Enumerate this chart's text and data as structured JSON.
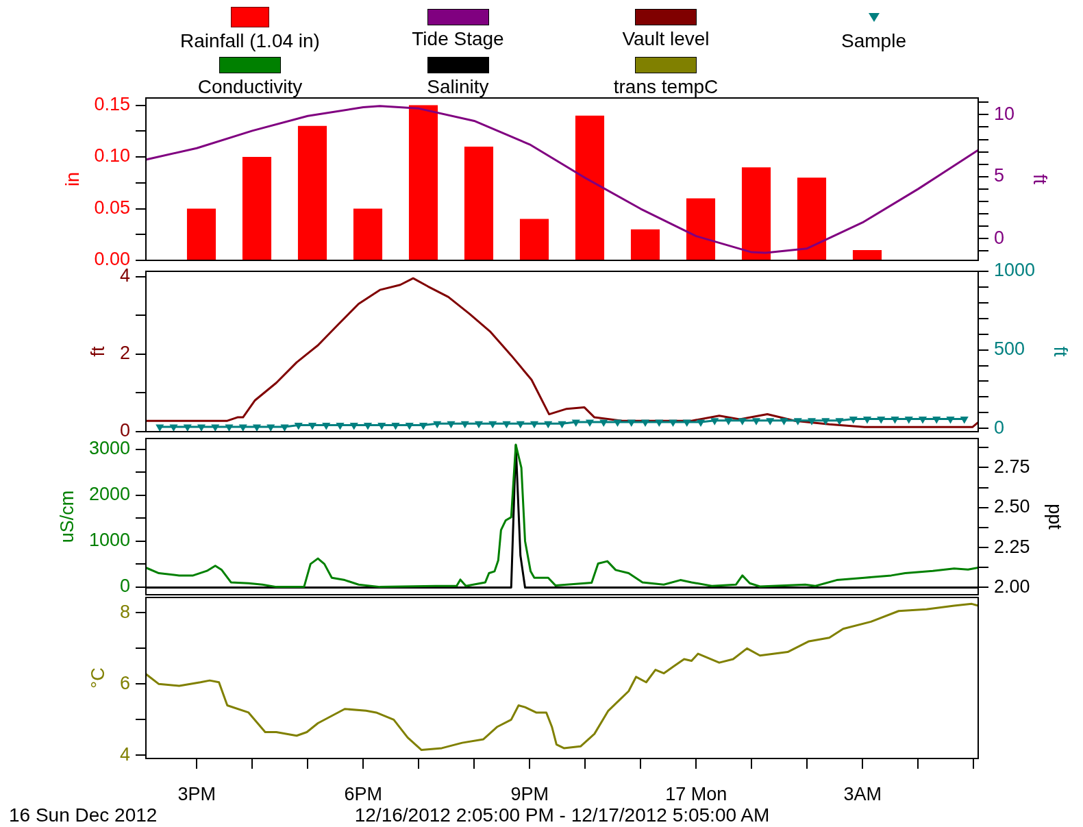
{
  "chart_data": [
    {
      "type": "bar",
      "xlim": [
        "2012-12-16T14:05",
        "2012-12-17T05:05"
      ],
      "ylim": [
        0,
        0.157
      ],
      "yticks": [
        {
          "value": 0,
          "label": "0.00"
        },
        {
          "value": 0.025,
          "label": null
        },
        {
          "value": 0.05,
          "label": "0.05"
        },
        {
          "value": 0.075,
          "label": null
        },
        {
          "value": 0.1,
          "label": "0.10"
        },
        {
          "value": 0.125,
          "label": null
        },
        {
          "value": 0.15,
          "label": "0.15"
        }
      ],
      "y2lim": [
        -1.76,
        11.35
      ],
      "y2ticks": [
        {
          "value": -1,
          "label": null
        },
        0,
        {
          "value": 1,
          "label": null
        },
        {
          "value": 2,
          "label": null
        },
        {
          "value": 3,
          "label": null
        },
        {
          "value": 4,
          "label": null
        },
        5,
        {
          "value": 6,
          "label": null
        },
        {
          "value": 7,
          "label": null
        },
        {
          "value": 8,
          "label": null
        },
        {
          "value": 9,
          "label": null
        },
        10,
        {
          "value": 11,
          "label": null
        }
      ],
      "ylabel": "in",
      "y2label": "ft",
      "tick_labels": "y",
      "legend": "top",
      "series": [
        {
          "name": "Rainfall (1.04 in)",
          "color": "#ff0000",
          "x": [
            "2012-12-16T15:05",
            "2012-12-16T16:05",
            "2012-12-16T17:05",
            "2012-12-16T18:05",
            "2012-12-16T19:05",
            "2012-12-16T20:05",
            "2012-12-16T21:05",
            "2012-12-16T22:05",
            "2012-12-16T23:05",
            "2012-12-17T00:05",
            "2012-12-17T01:05",
            "2012-12-17T02:05",
            "2012-12-17T03:05"
          ],
          "values": [
            0.05,
            0.1,
            0.13,
            0.05,
            0.15,
            0.11,
            0.04,
            0.14,
            0.03,
            0.06,
            0.09,
            0.08,
            0.01
          ]
        },
        {
          "name": "Tide Stage",
          "type": "line",
          "color": "#800080",
          "axis": "y2",
          "x": [
            "2012-12-16T14:05",
            "2012-12-16T15:00",
            "2012-12-16T16:00",
            "2012-12-16T17:00",
            "2012-12-16T18:00",
            "2012-12-16T18:18",
            "2012-12-16T19:00",
            "2012-12-16T20:00",
            "2012-12-16T21:00",
            "2012-12-16T22:00",
            "2012-12-16T23:00",
            "2012-12-17T00:00",
            "2012-12-17T01:00",
            "2012-12-17T01:15",
            "2012-12-17T02:00",
            "2012-12-17T03:00",
            "2012-12-17T04:00",
            "2012-12-17T05:05"
          ],
          "values": [
            6.37,
            7.3,
            8.7,
            9.9,
            10.6,
            10.7,
            10.5,
            9.5,
            7.6,
            4.9,
            2.4,
            0.2,
            -1.1,
            -1.15,
            -0.8,
            1.3,
            4.0,
            7.14
          ]
        }
      ]
    },
    {
      "type": "line",
      "xlim": [
        "2012-12-16T14:05",
        "2012-12-17T05:05"
      ],
      "ylim": [
        0,
        4.14
      ],
      "yticks": [
        0,
        {
          "value": 1,
          "label": null
        },
        2,
        {
          "value": 3,
          "label": null
        },
        4
      ],
      "y2lim": [
        -21,
        1000
      ],
      "y2ticks": [
        0,
        {
          "value": 100,
          "label": null
        },
        {
          "value": 200,
          "label": null
        },
        {
          "value": 300,
          "label": null
        },
        {
          "value": 400,
          "label": null
        },
        500,
        {
          "value": 600,
          "label": null
        },
        {
          "value": 700,
          "label": null
        },
        {
          "value": 800,
          "label": null
        },
        {
          "value": 900,
          "label": null
        },
        1000
      ],
      "ylabel": "ft",
      "y2label": "ft",
      "tick_labels": "y",
      "legend": "top",
      "series": [
        {
          "name": "Vault level",
          "color": "#800000",
          "x": [
            "2012-12-16T14:05",
            "2012-12-16T15:33",
            "2012-12-16T15:44",
            "2012-12-16T15:50",
            "2012-12-16T16:03",
            "2012-12-16T16:26",
            "2012-12-16T16:48",
            "2012-12-16T17:11",
            "2012-12-16T17:33",
            "2012-12-16T17:55",
            "2012-12-16T18:18",
            "2012-12-16T18:40",
            "2012-12-16T18:54",
            "2012-12-16T19:10",
            "2012-12-16T19:32",
            "2012-12-16T19:55",
            "2012-12-16T20:17",
            "2012-12-16T20:40",
            "2012-12-16T21:02",
            "2012-12-16T21:21",
            "2012-12-16T21:40",
            "2012-12-16T21:59",
            "2012-12-16T22:10",
            "2012-12-16T22:40",
            "2012-12-16T23:17",
            "2012-12-16T23:55",
            "2012-12-17T00:25",
            "2012-12-17T00:47",
            "2012-12-17T01:17",
            "2012-12-17T01:47",
            "2012-12-17T02:24",
            "2012-12-17T03:02",
            "2012-12-17T03:39",
            "2012-12-17T04:59",
            "2012-12-17T05:05"
          ],
          "values": [
            0.28,
            0.28,
            0.37,
            0.37,
            0.81,
            1.26,
            1.79,
            2.23,
            2.77,
            3.3,
            3.66,
            3.79,
            3.96,
            3.75,
            3.48,
            3.04,
            2.59,
            1.97,
            1.34,
            0.45,
            0.59,
            0.63,
            0.37,
            0.28,
            0.28,
            0.28,
            0.41,
            0.32,
            0.45,
            0.28,
            0.19,
            0.12,
            0.12,
            0.12,
            0.24
          ]
        },
        {
          "name": "Sample",
          "color": "#008080",
          "axis": "y2",
          "marker": "triangle",
          "x": [
            "2012-12-16T14:20",
            "2012-12-16T14:35",
            "2012-12-16T14:50",
            "2012-12-16T15:05",
            "2012-12-16T15:20",
            "2012-12-16T15:35",
            "2012-12-16T15:50",
            "2012-12-16T16:05",
            "2012-12-16T16:20",
            "2012-12-16T16:35",
            "2012-12-16T16:50",
            "2012-12-16T17:05",
            "2012-12-16T17:20",
            "2012-12-16T17:35",
            "2012-12-16T17:50",
            "2012-12-16T18:05",
            "2012-12-16T18:20",
            "2012-12-16T18:35",
            "2012-12-16T18:50",
            "2012-12-16T19:05",
            "2012-12-16T19:20",
            "2012-12-16T19:35",
            "2012-12-16T19:50",
            "2012-12-16T20:05",
            "2012-12-16T20:20",
            "2012-12-16T20:35",
            "2012-12-16T20:50",
            "2012-12-16T21:05",
            "2012-12-16T21:20",
            "2012-12-16T21:35",
            "2012-12-16T21:50",
            "2012-12-16T22:05",
            "2012-12-16T22:20",
            "2012-12-16T22:35",
            "2012-12-16T22:50",
            "2012-12-16T23:05",
            "2012-12-16T23:20",
            "2012-12-16T23:35",
            "2012-12-16T23:50",
            "2012-12-17T00:05",
            "2012-12-17T00:20",
            "2012-12-17T00:35",
            "2012-12-17T00:50",
            "2012-12-17T01:05",
            "2012-12-17T01:20",
            "2012-12-17T01:35",
            "2012-12-17T01:50",
            "2012-12-17T02:05",
            "2012-12-17T02:20",
            "2012-12-17T02:35",
            "2012-12-17T02:50",
            "2012-12-17T03:05",
            "2012-12-17T03:20",
            "2012-12-17T03:35",
            "2012-12-17T03:50",
            "2012-12-17T04:05",
            "2012-12-17T04:20",
            "2012-12-17T04:35",
            "2012-12-17T04:50"
          ],
          "values": [
            10,
            10,
            10,
            10,
            10,
            10,
            10,
            10,
            10,
            10,
            20,
            20,
            20,
            20,
            20,
            20,
            20,
            20,
            20,
            20,
            30,
            30,
            30,
            30,
            30,
            30,
            30,
            30,
            30,
            30,
            40,
            40,
            40,
            40,
            40,
            40,
            40,
            40,
            40,
            40,
            50,
            50,
            50,
            50,
            50,
            50,
            50,
            50,
            50,
            50,
            60,
            60,
            60,
            60,
            60,
            60,
            60,
            60,
            60
          ]
        }
      ]
    },
    {
      "type": "line",
      "xlim": [
        "2012-12-16T14:05",
        "2012-12-17T05:05"
      ],
      "ylim": [
        -170,
        3236
      ],
      "yticks": [
        0,
        {
          "value": 500,
          "label": null
        },
        1000,
        {
          "value": 1500,
          "label": null
        },
        2000,
        {
          "value": 2500,
          "label": null
        },
        3000
      ],
      "y2lim": [
        1.955,
        2.932
      ],
      "y2ticks": [
        {
          "value": 2,
          "label": "2.00"
        },
        {
          "value": 2.125,
          "label": null
        },
        2.25,
        {
          "value": 2.375,
          "label": null
        },
        {
          "value": 2.5,
          "label": "2.50"
        },
        {
          "value": 2.625,
          "label": null
        },
        2.75,
        {
          "value": 2.875,
          "label": null
        }
      ],
      "ylabel": "uS/cm",
      "y2label": "ppt",
      "tick_labels": "y",
      "legend": "top",
      "series": [
        {
          "name": "Conductivity",
          "color": "#008000",
          "x": [
            "2012-12-16T14:05",
            "2012-12-16T14:19",
            "2012-12-16T14:41",
            "2012-12-16T14:56",
            "2012-12-16T15:11",
            "2012-12-16T15:20",
            "2012-12-16T15:27",
            "2012-12-16T15:37",
            "2012-12-16T15:56",
            "2012-12-16T16:11",
            "2012-12-16T16:26",
            "2012-12-16T16:56",
            "2012-12-16T17:03",
            "2012-12-16T17:11",
            "2012-12-16T17:18",
            "2012-12-16T17:26",
            "2012-12-16T17:40",
            "2012-12-16T17:55",
            "2012-12-16T18:18",
            "2012-12-16T19:18",
            "2012-12-16T19:41",
            "2012-12-16T19:45",
            "2012-12-16T19:51",
            "2012-12-16T20:12",
            "2012-12-16T20:16",
            "2012-12-16T20:22",
            "2012-12-16T20:26",
            "2012-12-16T20:29",
            "2012-12-16T20:34",
            "2012-12-16T20:40",
            "2012-12-16T20:45",
            "2012-12-16T20:51",
            "2012-12-16T20:55",
            "2012-12-16T21:01",
            "2012-12-16T21:05",
            "2012-12-16T21:20",
            "2012-12-16T21:28",
            "2012-12-16T22:07",
            "2012-12-16T22:14",
            "2012-12-16T22:24",
            "2012-12-16T22:33",
            "2012-12-16T22:47",
            "2012-12-16T23:02",
            "2012-12-16T23:25",
            "2012-12-16T23:43",
            "2012-12-16T23:55",
            "2012-12-17T00:17",
            "2012-12-17T00:43",
            "2012-12-17T00:50",
            "2012-12-17T00:58",
            "2012-12-17T01:09",
            "2012-12-17T01:58",
            "2012-12-17T02:09",
            "2012-12-17T02:32",
            "2012-12-17T03:02",
            "2012-12-17T03:31",
            "2012-12-17T03:46",
            "2012-12-17T04:16",
            "2012-12-17T04:39",
            "2012-12-17T04:54",
            "2012-12-17T05:05"
          ],
          "values": [
            420,
            300,
            250,
            250,
            350,
            460,
            370,
            100,
            80,
            50,
            0,
            0,
            500,
            620,
            500,
            200,
            150,
            50,
            0,
            20,
            20,
            160,
            20,
            100,
            300,
            340,
            580,
            1240,
            1450,
            1520,
            3100,
            2600,
            1000,
            340,
            200,
            200,
            30,
            90,
            510,
            560,
            370,
            300,
            100,
            50,
            150,
            100,
            20,
            50,
            250,
            80,
            10,
            50,
            20,
            150,
            200,
            250,
            300,
            350,
            400,
            380,
            420
          ]
        },
        {
          "name": "Salinity",
          "color": "#000000",
          "axis": "y2",
          "x": [
            "2012-12-16T14:05",
            "2012-12-16T20:40",
            "2012-12-16T20:45",
            "2012-12-16T20:50",
            "2012-12-16T20:55",
            "2012-12-17T05:05"
          ],
          "values": [
            2.0,
            2.0,
            2.89,
            2.2,
            2.0,
            2.0
          ]
        }
      ]
    },
    {
      "type": "line",
      "xlim": [
        "2012-12-16T14:05",
        "2012-12-17T05:05"
      ],
      "xticks": [
        {
          "value": "2012-12-16T15:00",
          "label": "3PM"
        },
        {
          "value": "2012-12-16T16:00",
          "label": null
        },
        {
          "value": "2012-12-16T17:00",
          "label": null
        },
        {
          "value": "2012-12-16T18:00",
          "label": "6PM"
        },
        {
          "value": "2012-12-16T19:00",
          "label": null
        },
        {
          "value": "2012-12-16T20:00",
          "label": null
        },
        {
          "value": "2012-12-16T21:00",
          "label": "9PM"
        },
        {
          "value": "2012-12-16T22:00",
          "label": null
        },
        {
          "value": "2012-12-16T23:00",
          "label": null
        },
        {
          "value": "2012-12-17T00:00",
          "label": "17 Mon"
        },
        {
          "value": "2012-12-17T01:00",
          "label": null
        },
        {
          "value": "2012-12-17T02:00",
          "label": null
        },
        {
          "value": "2012-12-17T03:00",
          "label": "3AM"
        },
        {
          "value": "2012-12-17T04:00",
          "label": null
        },
        {
          "value": "2012-12-17T05:00",
          "label": null
        }
      ],
      "ylim": [
        3.91,
        8.43
      ],
      "yticks": [
        4,
        {
          "value": 5,
          "label": null
        },
        6,
        {
          "value": 7,
          "label": null
        },
        8
      ],
      "ylabel": "°C",
      "legend": "top",
      "annotations": [
        "16 Sun Dec 2012",
        "12/16/2012 2:05:00 PM - 12/17/2012 5:05:00 AM"
      ],
      "series": [
        {
          "name": "trans tempC",
          "color": "#808000",
          "x": [
            "2012-12-16T14:05",
            "2012-12-16T14:19",
            "2012-12-16T14:41",
            "2012-12-16T15:04",
            "2012-12-16T15:14",
            "2012-12-16T15:24",
            "2012-12-16T15:33",
            "2012-12-16T15:56",
            "2012-12-16T16:14",
            "2012-12-16T16:26",
            "2012-12-16T16:48",
            "2012-12-16T16:59",
            "2012-12-16T17:11",
            "2012-12-16T17:40",
            "2012-12-16T18:03",
            "2012-12-16T18:14",
            "2012-12-16T18:33",
            "2012-12-16T18:48",
            "2012-12-16T19:03",
            "2012-12-16T19:25",
            "2012-12-16T19:47",
            "2012-12-16T20:10",
            "2012-12-16T20:25",
            "2012-12-16T20:40",
            "2012-12-16T20:48",
            "2012-12-16T20:55",
            "2012-12-16T21:07",
            "2012-12-16T21:18",
            "2012-12-16T21:24",
            "2012-12-16T21:29",
            "2012-12-16T21:37",
            "2012-12-16T21:55",
            "2012-12-16T22:10",
            "2012-12-16T22:25",
            "2012-12-16T22:47",
            "2012-12-16T22:55",
            "2012-12-16T23:06",
            "2012-12-16T23:16",
            "2012-12-16T23:25",
            "2012-12-16T23:36",
            "2012-12-16T23:47",
            "2012-12-16T23:55",
            "2012-12-17T00:02",
            "2012-12-17T00:25",
            "2012-12-17T00:40",
            "2012-12-17T00:55",
            "2012-12-17T01:09",
            "2012-12-17T01:39",
            "2012-12-17T02:02",
            "2012-12-17T02:24",
            "2012-12-17T02:39",
            "2012-12-17T03:09",
            "2012-12-17T03:39",
            "2012-12-17T04:09",
            "2012-12-17T04:39",
            "2012-12-17T04:58",
            "2012-12-17T05:05"
          ],
          "values": [
            6.28,
            6.0,
            5.95,
            6.05,
            6.1,
            6.05,
            5.4,
            5.2,
            4.65,
            4.65,
            4.55,
            4.65,
            4.9,
            5.3,
            5.25,
            5.2,
            5.0,
            4.5,
            4.15,
            4.2,
            4.35,
            4.45,
            4.8,
            5.0,
            5.4,
            5.35,
            5.2,
            5.2,
            4.8,
            4.3,
            4.2,
            4.25,
            4.6,
            5.25,
            5.8,
            6.2,
            6.05,
            6.4,
            6.3,
            6.5,
            6.7,
            6.65,
            6.85,
            6.6,
            6.7,
            7.0,
            6.8,
            6.9,
            7.2,
            7.3,
            7.55,
            7.75,
            8.05,
            8.1,
            8.2,
            8.25,
            8.2
          ]
        }
      ]
    }
  ]
}
